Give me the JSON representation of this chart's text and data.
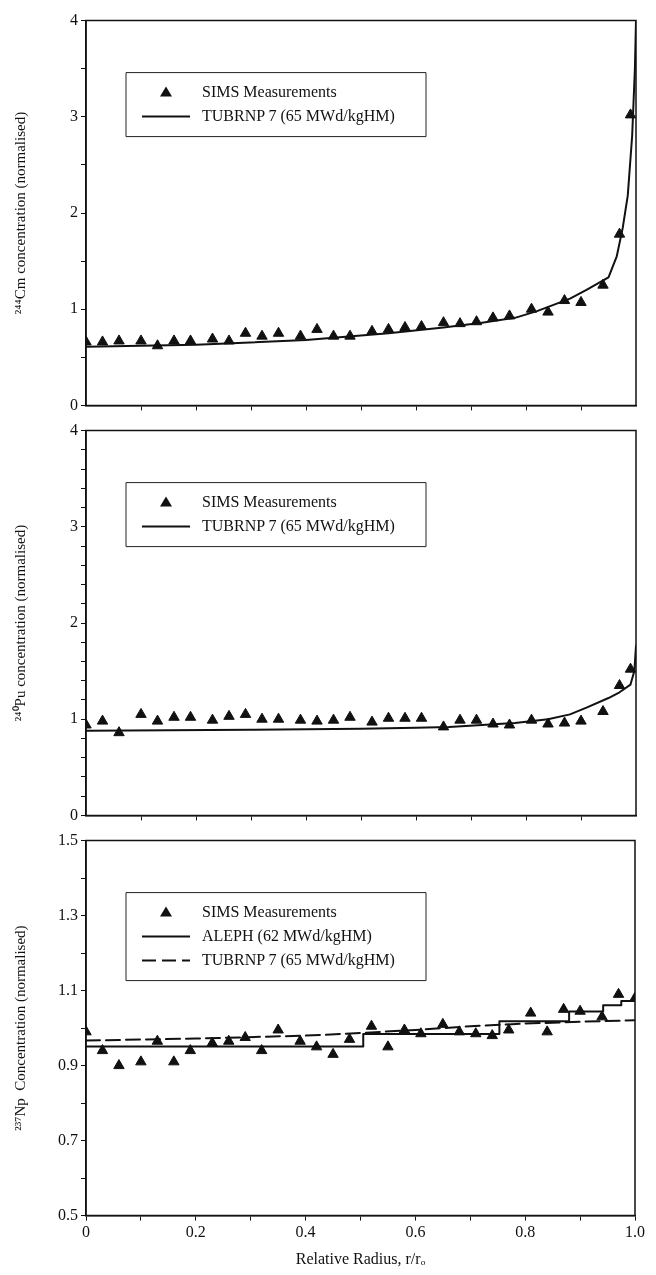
{
  "chart_data": [
    {
      "type": "line",
      "ylabel": "²⁴⁴Cm concentration (normalised)",
      "xlim": [
        0,
        1
      ],
      "xticks": [
        {
          "value": 0.1,
          "label": null
        },
        {
          "value": 0.2,
          "label": null
        },
        {
          "value": 0.3,
          "label": null
        },
        {
          "value": 0.4,
          "label": null
        },
        {
          "value": 0.5,
          "label": null
        },
        {
          "value": 0.6,
          "label": null
        },
        {
          "value": 0.7,
          "label": null
        },
        {
          "value": 0.8,
          "label": null
        },
        {
          "value": 0.9,
          "label": null
        }
      ],
      "ylim": [
        0,
        4
      ],
      "yticks": [
        0,
        {
          "value": 0.5,
          "label": null
        },
        1,
        {
          "value": 1.5,
          "label": null
        },
        2,
        {
          "value": 2.5,
          "label": null
        },
        3,
        {
          "value": 3.5,
          "label": null
        },
        4
      ],
      "tick_labels": "y",
      "grid": false,
      "legend": "top left",
      "series": [
        {
          "name": "SIMS Measurements",
          "type": "scatter",
          "marker": "triangle",
          "color": "#111111",
          "x": [
            0,
            0.03,
            0.06,
            0.1,
            0.13,
            0.16,
            0.19,
            0.23,
            0.26,
            0.29,
            0.32,
            0.35,
            0.39,
            0.42,
            0.45,
            0.48,
            0.52,
            0.55,
            0.58,
            0.61,
            0.65,
            0.68,
            0.71,
            0.74,
            0.77,
            0.81,
            0.84,
            0.87,
            0.9,
            0.94,
            0.97,
            0.99
          ],
          "values": [
            0.66,
            0.66,
            0.67,
            0.67,
            0.62,
            0.67,
            0.67,
            0.69,
            0.67,
            0.75,
            0.72,
            0.75,
            0.72,
            0.79,
            0.72,
            0.72,
            0.77,
            0.79,
            0.81,
            0.82,
            0.86,
            0.85,
            0.87,
            0.91,
            0.93,
            1.0,
            0.97,
            1.09,
            1.07,
            1.25,
            1.78,
            3.02
          ]
        },
        {
          "name": "TUBRNP 7 (65 MWd/kgHM)",
          "type": "line",
          "marker": "none",
          "line_style": "solid",
          "color": "#111111",
          "x": [
            0,
            0.2,
            0.4,
            0.55,
            0.65,
            0.72,
            0.78,
            0.82,
            0.88,
            0.91,
            0.95,
            0.965,
            0.976,
            0.985,
            0.993,
            0.998,
            1.0
          ],
          "values": [
            0.61,
            0.63,
            0.68,
            0.75,
            0.81,
            0.86,
            0.91,
            0.98,
            1.11,
            1.2,
            1.33,
            1.55,
            1.85,
            2.18,
            2.8,
            3.5,
            4.0
          ]
        }
      ]
    },
    {
      "type": "line",
      "ylabel": "²⁴⁰Pu concentration (normalised)",
      "xlim": [
        0,
        1
      ],
      "xticks": [
        {
          "value": 0.1,
          "label": null
        },
        {
          "value": 0.2,
          "label": null
        },
        {
          "value": 0.3,
          "label": null
        },
        {
          "value": 0.4,
          "label": null
        },
        {
          "value": 0.5,
          "label": null
        },
        {
          "value": 0.6,
          "label": null
        },
        {
          "value": 0.7,
          "label": null
        },
        {
          "value": 0.8,
          "label": null
        },
        {
          "value": 0.9,
          "label": null
        }
      ],
      "ylim": [
        0,
        4
      ],
      "yticks": [
        0,
        {
          "value": 0.2,
          "label": null
        },
        {
          "value": 0.4,
          "label": null
        },
        {
          "value": 0.6,
          "label": null
        },
        {
          "value": 0.8,
          "label": null
        },
        1,
        {
          "value": 1.2,
          "label": null
        },
        {
          "value": 1.4,
          "label": null
        },
        {
          "value": 1.6,
          "label": null
        },
        {
          "value": 1.8,
          "label": null
        },
        2,
        {
          "value": 2.2,
          "label": null
        },
        {
          "value": 2.4,
          "label": null
        },
        {
          "value": 2.6,
          "label": null
        },
        {
          "value": 2.8,
          "label": null
        },
        3,
        {
          "value": 3.2,
          "label": null
        },
        {
          "value": 3.4,
          "label": null
        },
        {
          "value": 3.6,
          "label": null
        },
        {
          "value": 3.8,
          "label": null
        },
        4
      ],
      "tick_labels": "y",
      "grid": false,
      "legend": "top left",
      "series": [
        {
          "name": "SIMS Measurements",
          "type": "scatter",
          "marker": "triangle",
          "color": "#111111",
          "x": [
            0,
            0.03,
            0.06,
            0.1,
            0.13,
            0.16,
            0.19,
            0.23,
            0.26,
            0.29,
            0.32,
            0.35,
            0.39,
            0.42,
            0.45,
            0.48,
            0.52,
            0.55,
            0.58,
            0.61,
            0.65,
            0.68,
            0.71,
            0.74,
            0.77,
            0.81,
            0.84,
            0.87,
            0.9,
            0.94,
            0.97,
            0.99
          ],
          "values": [
            0.94,
            0.98,
            0.86,
            1.05,
            0.98,
            1.02,
            1.02,
            0.99,
            1.03,
            1.05,
            1.0,
            1.0,
            0.99,
            0.98,
            0.99,
            1.02,
            0.97,
            1.01,
            1.01,
            1.01,
            0.92,
            0.99,
            0.99,
            0.95,
            0.94,
            0.99,
            0.95,
            0.96,
            0.98,
            1.08,
            1.35,
            1.52
          ]
        },
        {
          "name": "TUBRNP 7 (65 MWd/kgHM)",
          "type": "line",
          "marker": "none",
          "line_style": "solid",
          "color": "#111111",
          "x": [
            0,
            0.3,
            0.5,
            0.6,
            0.66,
            0.72,
            0.78,
            0.84,
            0.88,
            0.91,
            0.95,
            0.97,
            0.99,
            0.997,
            1.0
          ],
          "values": [
            0.88,
            0.89,
            0.9,
            0.91,
            0.92,
            0.94,
            0.96,
            1.0,
            1.05,
            1.12,
            1.22,
            1.28,
            1.36,
            1.5,
            1.76
          ]
        }
      ]
    },
    {
      "type": "line",
      "xlabel": "Relative Radius, r/rₒ",
      "ylabel": "²³⁷Np  Concentration (normalised)",
      "xlim": [
        0,
        1
      ],
      "xticks": [
        0,
        {
          "value": 0.1,
          "label": null
        },
        {
          "value": 0.2,
          "label": "0.2"
        },
        {
          "value": 0.3,
          "label": null
        },
        {
          "value": 0.4,
          "label": "0.4"
        },
        {
          "value": 0.5,
          "label": null
        },
        {
          "value": 0.6,
          "label": "0.6"
        },
        {
          "value": 0.7,
          "label": null
        },
        {
          "value": 0.8,
          "label": "0.8"
        },
        {
          "value": 0.9,
          "label": null
        },
        {
          "value": 1,
          "label": "1.0"
        }
      ],
      "ylim": [
        0.5,
        1.5
      ],
      "yticks": [
        0.5,
        {
          "value": 0.6,
          "label": null
        },
        0.7,
        {
          "value": 0.8,
          "label": null
        },
        0.9,
        {
          "value": 1.0,
          "label": null
        },
        1.1,
        {
          "value": 1.2,
          "label": null
        },
        1.3,
        {
          "value": 1.4,
          "label": null
        },
        1.5
      ],
      "grid": false,
      "legend": "top left",
      "series": [
        {
          "name": "SIMS Measurements",
          "type": "scatter",
          "marker": "triangle",
          "color": "#111111",
          "x": [
            0,
            0.03,
            0.06,
            0.1,
            0.13,
            0.16,
            0.19,
            0.23,
            0.26,
            0.29,
            0.32,
            0.35,
            0.39,
            0.42,
            0.45,
            0.48,
            0.52,
            0.55,
            0.58,
            0.61,
            0.65,
            0.68,
            0.71,
            0.74,
            0.77,
            0.81,
            0.84,
            0.87,
            0.9,
            0.94,
            0.97,
            1.0
          ],
          "values": [
            0.99,
            0.94,
            0.9,
            0.91,
            0.965,
            0.91,
            0.94,
            0.96,
            0.965,
            0.975,
            0.94,
            0.995,
            0.965,
            0.95,
            0.93,
            0.97,
            1.005,
            0.95,
            0.995,
            0.985,
            1.01,
            0.99,
            0.985,
            0.98,
            0.995,
            1.04,
            0.99,
            1.05,
            1.045,
            1.03,
            1.09,
            1.08
          ]
        },
        {
          "name": "ALEPH (62 MWd/kgHM)",
          "type": "step",
          "marker": "none",
          "line_style": "solid",
          "color": "#111111",
          "x": [
            0,
            0.505,
            0.753,
            0.88,
            0.942,
            0.975,
            1.0
          ],
          "values": [
            0.951,
            0.984,
            1.018,
            1.044,
            1.061,
            1.072,
            1.072
          ]
        },
        {
          "name": "TUBRNP 7 (65 MWd/kgHM)",
          "type": "line",
          "marker": "none",
          "line_style": "dashed",
          "color": "#111111",
          "x": [
            0,
            0.2,
            0.4,
            0.5,
            0.6,
            0.7,
            0.8,
            0.9,
            1.0
          ],
          "values": [
            0.967,
            0.972,
            0.98,
            0.987,
            0.995,
            1.005,
            1.012,
            1.017,
            1.021
          ]
        }
      ]
    }
  ]
}
